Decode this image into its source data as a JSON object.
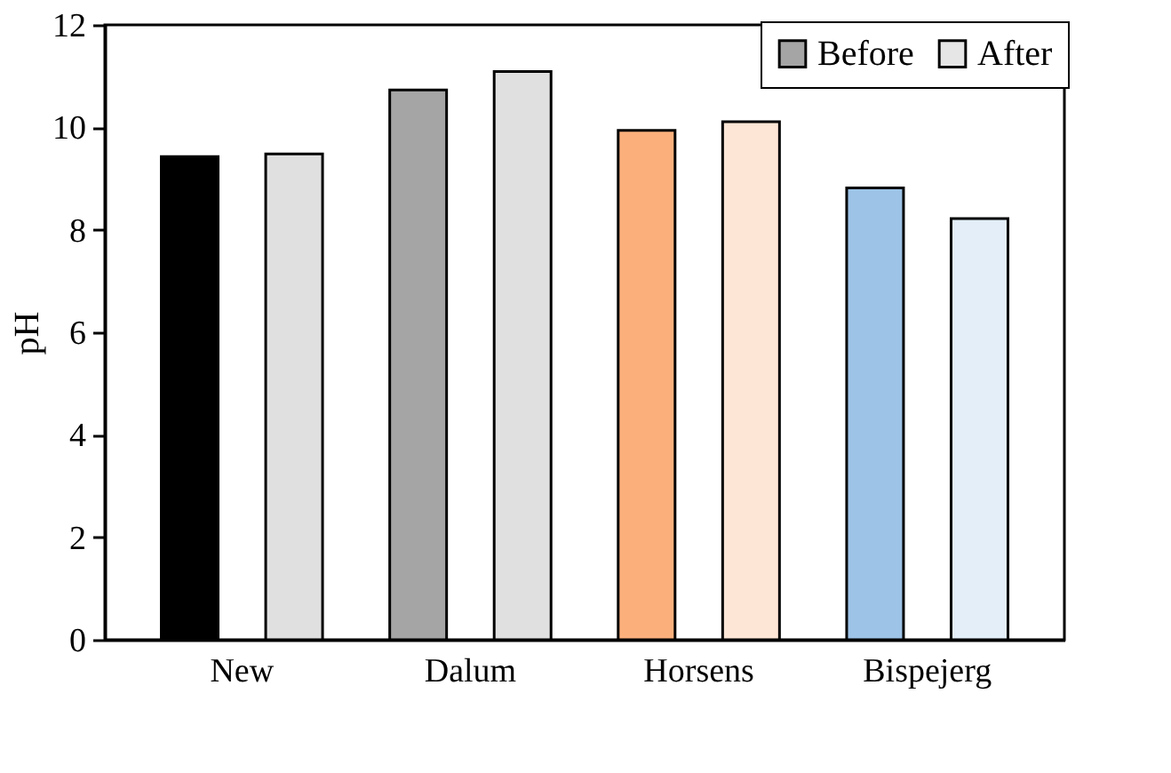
{
  "chart_data": {
    "type": "bar",
    "ylabel": "pH",
    "categories": [
      "New",
      "Dalum",
      "Horsens",
      "Bispejerg"
    ],
    "series": [
      {
        "name": "Before",
        "color": "#a5a5a5",
        "colors": [
          "#000000",
          "#a5a5a5",
          "#fbb07c",
          "#9dc3e6"
        ],
        "values": [
          9.43,
          10.73,
          9.94,
          8.82
        ]
      },
      {
        "name": "After",
        "color": "#e6e6e6",
        "colors": [
          "#e0e0e0",
          "#e0e0e0",
          "#fde6d6",
          "#e3eef8"
        ],
        "values": [
          9.48,
          11.09,
          10.11,
          8.22
        ]
      }
    ],
    "ylim": [
      0,
      12
    ],
    "yticks": [
      0,
      2,
      4,
      6,
      8,
      10,
      12
    ],
    "grid": false,
    "legend": "top right"
  }
}
